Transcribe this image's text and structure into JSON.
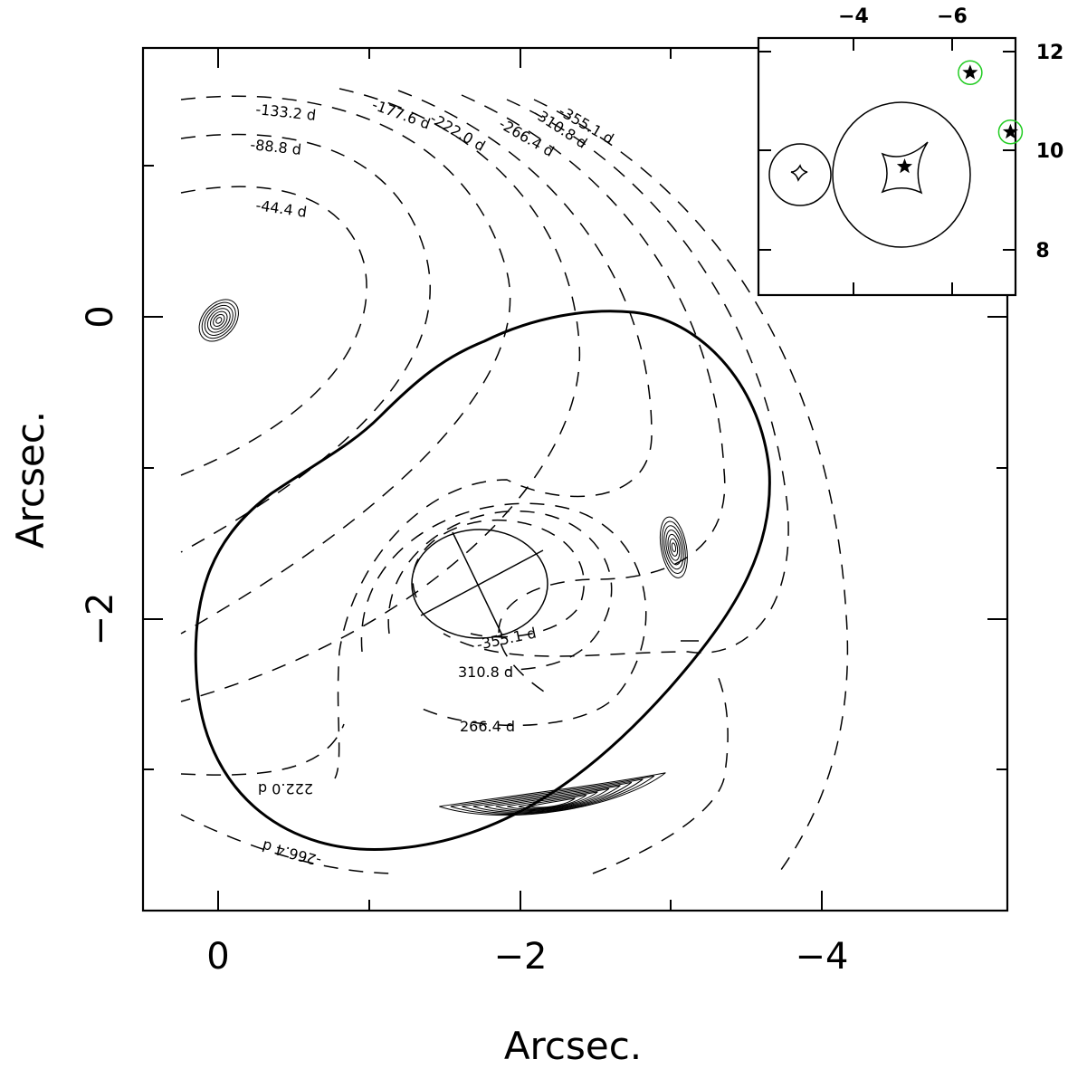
{
  "chart_data": {
    "type": "contour",
    "xlabel": "Arcsec.",
    "ylabel": "Arcsec.",
    "x_ticks": [
      0,
      -2,
      -4
    ],
    "y_ticks": [
      0,
      -2
    ],
    "x_tick_labels": [
      "0",
      "−2",
      "−4"
    ],
    "y_tick_labels": [
      "0",
      "−2"
    ],
    "xlim": [
      0.5,
      -5.2
    ],
    "ylim": [
      -3.9,
      1.8
    ],
    "time_delay_contours": [
      {
        "label": "-44.4 d"
      },
      {
        "label": "-88.8 d"
      },
      {
        "label": "-133.2 d"
      },
      {
        "label": "-177.6 d"
      },
      {
        "label": "-222.0 d"
      },
      {
        "label": "-266.4 d"
      },
      {
        "label": "-310.8 d"
      },
      {
        "label": "-355.1 d"
      },
      {
        "label": "-355.1 d"
      },
      {
        "label": "310.8 d"
      },
      {
        "label": "266.4 d"
      },
      {
        "label": "222.0 d"
      },
      {
        "label": "-266.4 d"
      }
    ],
    "images": [
      {
        "name": "image-a",
        "x": 0.0,
        "y": 0.0
      },
      {
        "name": "image-b",
        "x": -3.0,
        "y": -1.5
      },
      {
        "name": "arc-c",
        "x": -2.2,
        "y": -3.2
      }
    ],
    "critical_curve": "solid-thick",
    "inset": {
      "x_ticks": [
        -4,
        -6
      ],
      "y_ticks": [
        8,
        10,
        12
      ],
      "x_tick_labels": [
        "−4",
        "−6"
      ],
      "y_tick_labels": [
        "8",
        "10",
        "12"
      ],
      "xlim": [
        -2.1,
        -7.2
      ],
      "ylim": [
        7.1,
        12.3
      ],
      "sources": [
        {
          "x": -5.0,
          "y": 9.7,
          "marker": "star",
          "ring": false
        },
        {
          "x": -6.3,
          "y": 11.6,
          "marker": "star",
          "ring": true
        },
        {
          "x": -7.1,
          "y": 10.4,
          "marker": "star",
          "ring": true
        }
      ],
      "ring_color": "#22cc22"
    }
  }
}
